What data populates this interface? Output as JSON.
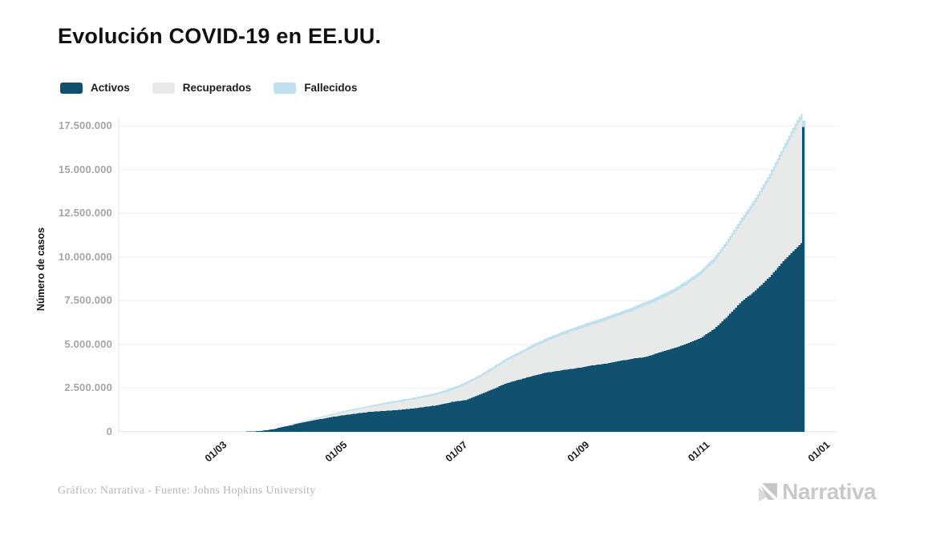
{
  "header": {
    "title": "Evolución COVID-19 en EE.UU."
  },
  "legend": [
    {
      "label": "Activos",
      "color": "#11506f"
    },
    {
      "label": "Recuperados",
      "color": "#e8eaea"
    },
    {
      "label": "Fallecidos",
      "color": "#bfe0ee"
    }
  ],
  "chart_data": {
    "type": "area",
    "stacked": true,
    "title": "Evolución COVID-19 en EE.UU.",
    "ylabel": "Número de casos",
    "ylim": [
      0,
      17500000
    ],
    "grid": "horizontal",
    "legend_position": "top-left",
    "y_ticks": [
      "0",
      "2.500.000",
      "5.000.000",
      "7.500.000",
      "10.000.000",
      "12.500.000",
      "15.000.000",
      "17.500.000"
    ],
    "x_ticks": [
      "01/03",
      "01/05",
      "01/07",
      "01/09",
      "01/11",
      "01/01"
    ],
    "x_range": [
      "2020-01-22",
      "2020-12-23"
    ],
    "series_order": [
      "Activos",
      "Recuperados",
      "Fallecidos"
    ],
    "series_colors": {
      "Activos": "#11506f",
      "Recuperados": "#e8eaea",
      "Fallecidos": "#bfe0ee"
    },
    "points": [
      {
        "date": "2020-01-22",
        "activos": 0,
        "recuperados": 0,
        "fallecidos": 0
      },
      {
        "date": "2020-03-01",
        "activos": 100,
        "recuperados": 0,
        "fallecidos": 0
      },
      {
        "date": "2020-03-15",
        "activos": 3400,
        "recuperados": 60,
        "fallecidos": 60
      },
      {
        "date": "2020-03-22",
        "activos": 32000,
        "recuperados": 300,
        "fallecidos": 400
      },
      {
        "date": "2020-03-29",
        "activos": 135000,
        "recuperados": 3000,
        "fallecidos": 2500
      },
      {
        "date": "2020-04-05",
        "activos": 310000,
        "recuperados": 17000,
        "fallecidos": 10000
      },
      {
        "date": "2020-04-12",
        "activos": 500000,
        "recuperados": 33000,
        "fallecidos": 22000
      },
      {
        "date": "2020-04-19",
        "activos": 650000,
        "recuperados": 71000,
        "fallecidos": 41000
      },
      {
        "date": "2020-04-26",
        "activos": 800000,
        "recuperados": 107000,
        "fallecidos": 55000
      },
      {
        "date": "2020-05-03",
        "activos": 920000,
        "recuperados": 175000,
        "fallecidos": 68000
      },
      {
        "date": "2020-05-10",
        "activos": 1030000,
        "recuperados": 216000,
        "fallecidos": 79000
      },
      {
        "date": "2020-05-17",
        "activos": 1130000,
        "recuperados": 272000,
        "fallecidos": 89000
      },
      {
        "date": "2020-05-24",
        "activos": 1180000,
        "recuperados": 366000,
        "fallecidos": 98000
      },
      {
        "date": "2020-05-31",
        "activos": 1240000,
        "recuperados": 444000,
        "fallecidos": 104000
      },
      {
        "date": "2020-06-07",
        "activos": 1310000,
        "recuperados": 500000,
        "fallecidos": 110000
      },
      {
        "date": "2020-06-14",
        "activos": 1410000,
        "recuperados": 547000,
        "fallecidos": 115000
      },
      {
        "date": "2020-06-21",
        "activos": 1520000,
        "recuperados": 617000,
        "fallecidos": 120000
      },
      {
        "date": "2020-06-28",
        "activos": 1700000,
        "recuperados": 679000,
        "fallecidos": 125000
      },
      {
        "date": "2020-07-05",
        "activos": 1810000,
        "recuperados": 894000,
        "fallecidos": 130000
      },
      {
        "date": "2020-07-12",
        "activos": 2120000,
        "recuperados": 995000,
        "fallecidos": 135000
      },
      {
        "date": "2020-07-19",
        "activos": 2450000,
        "recuperados": 1122000,
        "fallecidos": 140000
      },
      {
        "date": "2020-07-26",
        "activos": 2790000,
        "recuperados": 1297000,
        "fallecidos": 147000
      },
      {
        "date": "2020-08-02",
        "activos": 3000000,
        "recuperados": 1461000,
        "fallecidos": 155000
      },
      {
        "date": "2020-08-09",
        "activos": 3230000,
        "recuperados": 1656000,
        "fallecidos": 163000
      },
      {
        "date": "2020-08-16",
        "activos": 3400000,
        "recuperados": 1833000,
        "fallecidos": 170000
      },
      {
        "date": "2020-08-23",
        "activos": 3520000,
        "recuperados": 2020000,
        "fallecidos": 177000
      },
      {
        "date": "2020-08-30",
        "activos": 3630000,
        "recuperados": 2184000,
        "fallecidos": 183000
      },
      {
        "date": "2020-09-06",
        "activos": 3770000,
        "recuperados": 2315000,
        "fallecidos": 189000
      },
      {
        "date": "2020-09-13",
        "activos": 3880000,
        "recuperados": 2451000,
        "fallecidos": 194000
      },
      {
        "date": "2020-09-20",
        "activos": 4020000,
        "recuperados": 2590000,
        "fallecidos": 199000
      },
      {
        "date": "2020-09-27",
        "activos": 4170000,
        "recuperados": 2727000,
        "fallecidos": 205000
      },
      {
        "date": "2020-10-04",
        "activos": 4270000,
        "recuperados": 2935000,
        "fallecidos": 210000
      },
      {
        "date": "2020-10-11",
        "activos": 4530000,
        "recuperados": 3021000,
        "fallecidos": 215000
      },
      {
        "date": "2020-10-18",
        "activos": 4760000,
        "recuperados": 3178000,
        "fallecidos": 220000
      },
      {
        "date": "2020-10-25",
        "activos": 5030000,
        "recuperados": 3379000,
        "fallecidos": 225000
      },
      {
        "date": "2020-11-01",
        "activos": 5360000,
        "recuperados": 3613000,
        "fallecidos": 231000
      },
      {
        "date": "2020-11-08",
        "activos": 5880000,
        "recuperados": 3852000,
        "fallecidos": 238000
      },
      {
        "date": "2020-11-15",
        "activos": 6640000,
        "recuperados": 4149000,
        "fallecidos": 246000
      },
      {
        "date": "2020-11-22",
        "activos": 7460000,
        "recuperados": 4530000,
        "fallecidos": 257000
      },
      {
        "date": "2020-11-29",
        "activos": 8090000,
        "recuperados": 5024000,
        "fallecidos": 267000
      },
      {
        "date": "2020-12-06",
        "activos": 8850000,
        "recuperados": 5625000,
        "fallecidos": 282000
      },
      {
        "date": "2020-12-13",
        "activos": 9750000,
        "recuperados": 6246000,
        "fallecidos": 298000
      },
      {
        "date": "2020-12-20",
        "activos": 10560000,
        "recuperados": 6963000,
        "fallecidos": 317000
      },
      {
        "date": "2020-12-22",
        "activos": 10780000,
        "recuperados": 7080000,
        "fallecidos": 320000
      },
      {
        "date": "2020-12-23",
        "activos": 17450000,
        "recuperados": 20000,
        "fallecidos": 330000
      }
    ]
  },
  "footer": {
    "credit": "Gráfico: Narrativa - Fuente: Johns Hopkins University",
    "brand": "Narrativa"
  }
}
